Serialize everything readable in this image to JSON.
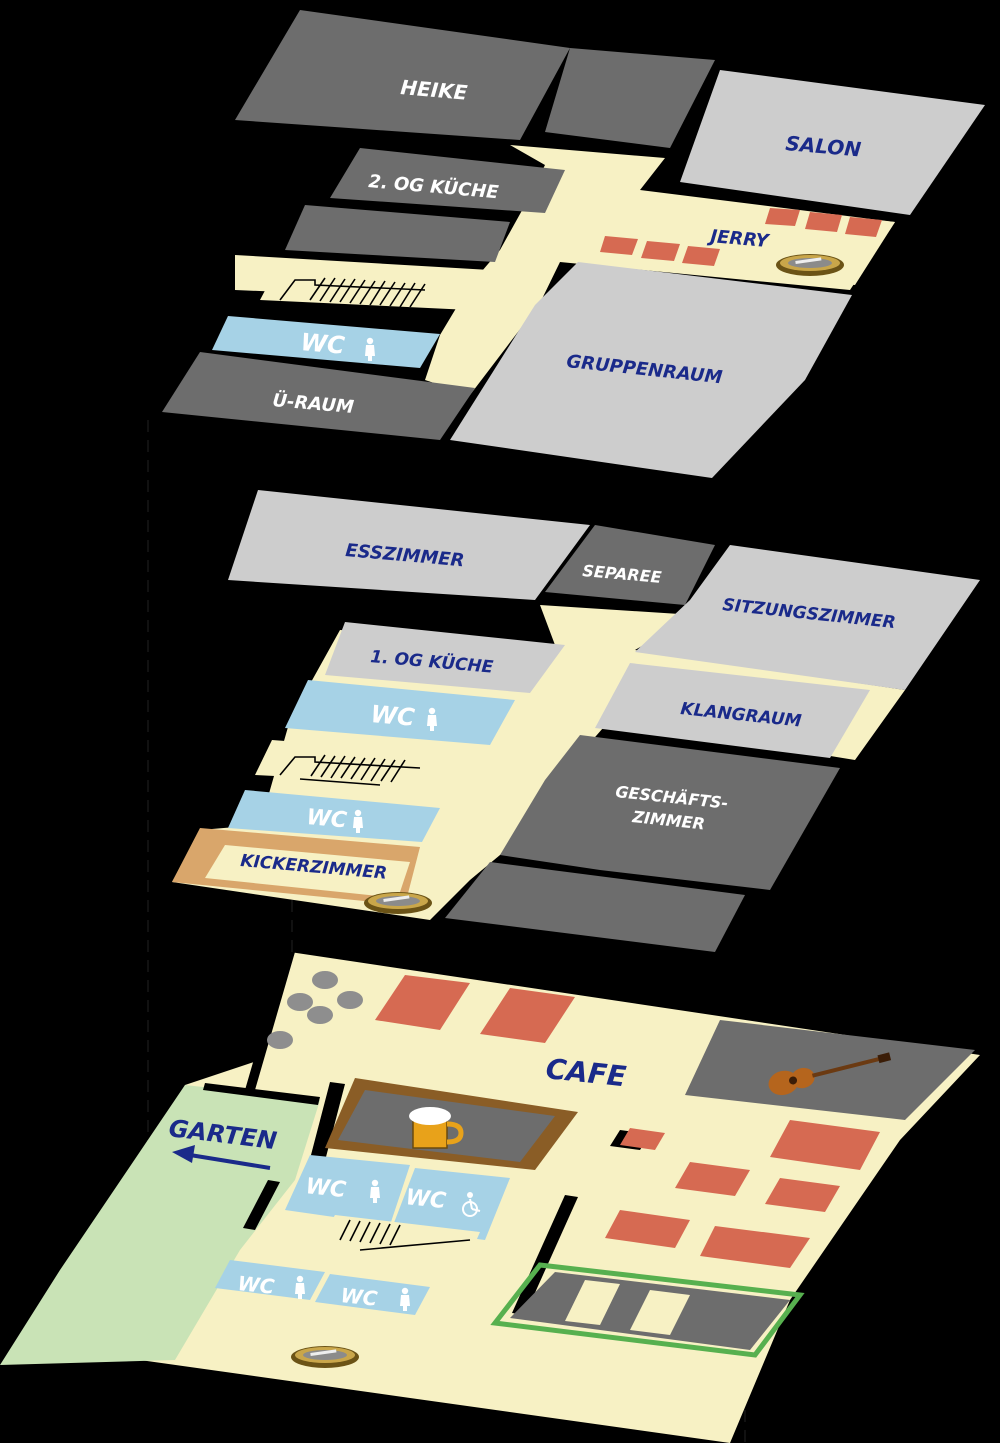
{
  "colors": {
    "background": "#000000",
    "corridor": "#f7f1c4",
    "room_dark": "#6d6d6d",
    "room_light": "#cdcdcd",
    "wc_blue": "#a6d2e6",
    "table_red": "#d66a52",
    "garden": "#c9e3b6",
    "kicker_frame": "#d9a66b",
    "label_blue": "#1a2a8a",
    "label_white": "#ffffff",
    "stage_green": "#57b04f"
  },
  "floor2": {
    "heike": "HEIKE",
    "salon": "SALON",
    "kitchen": "2. OG KÜCHE",
    "jerry": "JERRY",
    "wc": "WC",
    "gruppenraum": "GRUPPENRAUM",
    "u_raum": "Ü-RAUM"
  },
  "floor1": {
    "esszimmer": "ESSZIMMER",
    "separee": "SEPAREE",
    "sitzungszimmer": "SITZUNGSZIMMER",
    "kitchen": "1. OG KÜCHE",
    "klangraum": "KLANGRAUM",
    "wc_top": "WC",
    "wc_bottom": "WC",
    "geschaefts_line1": "GESCHÄFTS-",
    "geschaefts_line2": "ZIMMER",
    "kickerzimmer": "KICKERZIMMER"
  },
  "floor0": {
    "cafe": "CAFE",
    "garten": "GARTEN",
    "wc_1": "WC",
    "wc_2": "WC",
    "wc_3": "WC",
    "wc_4": "WC"
  },
  "icons": [
    "stairs-icon",
    "toilet-person-icon",
    "wheelchair-icon",
    "beer-mug-icon",
    "ashtray-icon",
    "guitar-icon",
    "arrow-left-icon"
  ]
}
